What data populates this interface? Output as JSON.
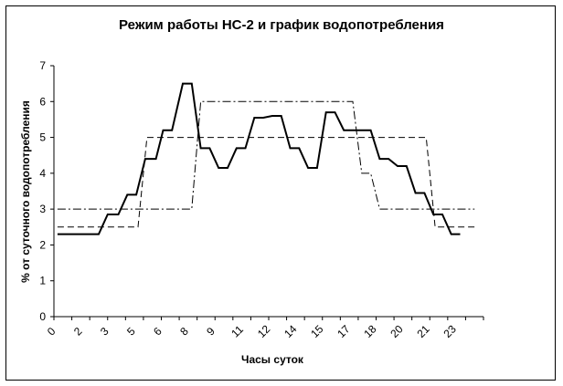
{
  "chart_data": {
    "type": "line",
    "title": "Режим работы НС-2 и график водопотребления",
    "xlabel": "Часы суток",
    "ylabel": "% от суточного водопотребления",
    "ylim": [
      0,
      7
    ],
    "xlim": [
      0,
      24
    ],
    "y_ticks": [
      "0",
      "1",
      "2",
      "3",
      "4",
      "5",
      "6",
      "7"
    ],
    "x_tick_labels": [
      {
        "x": 0,
        "label": "0"
      },
      {
        "x": 1,
        "label": "2"
      },
      {
        "x": 2,
        "label": "3"
      },
      {
        "x": 3,
        "label": "5"
      },
      {
        "x": 4,
        "label": "6"
      },
      {
        "x": 5,
        "label": "8"
      },
      {
        "x": 6,
        "label": "9"
      },
      {
        "x": 7,
        "label": "11"
      },
      {
        "x": 8,
        "label": "12"
      },
      {
        "x": 9,
        "label": "14"
      },
      {
        "x": 10,
        "label": "15"
      },
      {
        "x": 11,
        "label": "17"
      },
      {
        "x": 12,
        "label": "18"
      },
      {
        "x": 13,
        "label": "20"
      },
      {
        "x": 14,
        "label": "21"
      },
      {
        "x": 15,
        "label": "23"
      }
    ],
    "x_tick_scale_points": 16,
    "grid": false,
    "series": [
      {
        "style": "solid",
        "color": "#000000",
        "points": [
          [
            0.2,
            2.3
          ],
          [
            2.5,
            2.3
          ],
          [
            3.0,
            2.85
          ],
          [
            3.6,
            2.85
          ],
          [
            4.1,
            3.4
          ],
          [
            4.6,
            3.4
          ],
          [
            5.1,
            4.4
          ],
          [
            5.7,
            4.4
          ],
          [
            6.1,
            5.2
          ],
          [
            6.6,
            5.2
          ],
          [
            7.2,
            6.5
          ],
          [
            7.7,
            6.5
          ],
          [
            8.2,
            4.7
          ],
          [
            8.7,
            4.7
          ],
          [
            9.2,
            4.15
          ],
          [
            9.7,
            4.15
          ],
          [
            10.2,
            4.7
          ],
          [
            10.7,
            4.7
          ],
          [
            11.2,
            5.55
          ],
          [
            11.7,
            5.55
          ],
          [
            12.2,
            5.6
          ],
          [
            12.7,
            5.6
          ],
          [
            13.2,
            4.7
          ],
          [
            13.7,
            4.7
          ],
          [
            14.2,
            4.15
          ],
          [
            14.7,
            4.15
          ],
          [
            15.2,
            5.7
          ],
          [
            15.7,
            5.7
          ],
          [
            16.2,
            5.2
          ],
          [
            17.7,
            5.2
          ],
          [
            18.2,
            4.4
          ],
          [
            18.7,
            4.4
          ],
          [
            19.2,
            4.2
          ],
          [
            19.7,
            4.2
          ],
          [
            20.2,
            3.45
          ],
          [
            20.7,
            3.45
          ],
          [
            21.2,
            2.85
          ],
          [
            21.7,
            2.85
          ],
          [
            22.2,
            2.3
          ],
          [
            22.7,
            2.3
          ]
        ]
      },
      {
        "style": "dashed",
        "color": "#000000",
        "points": [
          [
            0.2,
            2.5
          ],
          [
            4.7,
            2.5
          ],
          [
            5.2,
            5.0
          ],
          [
            20.8,
            5.0
          ],
          [
            21.3,
            2.5
          ],
          [
            23.5,
            2.5
          ]
        ]
      },
      {
        "style": "dash-dot",
        "color": "#000000",
        "points": [
          [
            0.2,
            3.0
          ],
          [
            7.7,
            3.0
          ],
          [
            8.2,
            6.0
          ],
          [
            16.7,
            6.0
          ],
          [
            17.2,
            4.0
          ],
          [
            17.7,
            4.0
          ],
          [
            18.2,
            3.0
          ],
          [
            23.5,
            3.0
          ]
        ]
      }
    ]
  }
}
